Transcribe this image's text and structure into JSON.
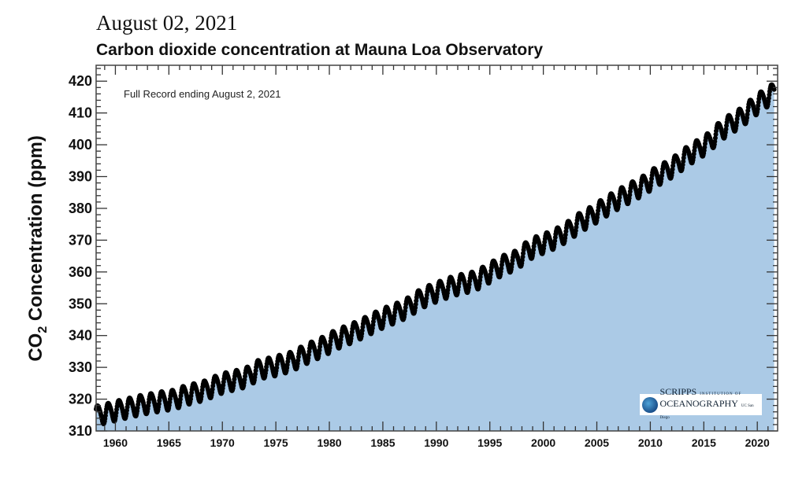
{
  "header": {
    "date": "August 02, 2021",
    "title": "Carbon dioxide concentration at Mauna Loa Observatory"
  },
  "logo": {
    "line1": "SCRIPPS",
    "line1_small": "INSTITUTION OF",
    "line2": "OCEANOGRAPHY",
    "line2_small": "UC San Diego"
  },
  "chart_data": {
    "type": "scatter",
    "title": "Carbon dioxide concentration at Mauna Loa Observatory",
    "annotation": "Full Record ending August 2, 2021",
    "ylabel_main": "CO",
    "ylabel_sub": "2",
    "ylabel_rest": " Concentration (ppm)",
    "xlabel": "",
    "xlim": [
      1958.2,
      2021.9
    ],
    "ylim": [
      310,
      425
    ],
    "x_ticks": [
      1960,
      1965,
      1970,
      1975,
      1980,
      1985,
      1990,
      1995,
      2000,
      2005,
      2010,
      2015,
      2020
    ],
    "y_ticks": [
      310,
      320,
      330,
      340,
      350,
      360,
      370,
      380,
      390,
      400,
      410,
      420
    ],
    "fill_color": "#abcae6",
    "marker_color": "#000000",
    "grid": false,
    "seasonal_amplitude_ppm": 6,
    "annual_mean": {
      "years": [
        1958,
        1959,
        1960,
        1961,
        1962,
        1963,
        1964,
        1965,
        1966,
        1967,
        1968,
        1969,
        1970,
        1971,
        1972,
        1973,
        1974,
        1975,
        1976,
        1977,
        1978,
        1979,
        1980,
        1981,
        1982,
        1983,
        1984,
        1985,
        1986,
        1987,
        1988,
        1989,
        1990,
        1991,
        1992,
        1993,
        1994,
        1995,
        1996,
        1997,
        1998,
        1999,
        2000,
        2001,
        2002,
        2003,
        2004,
        2005,
        2006,
        2007,
        2008,
        2009,
        2010,
        2011,
        2012,
        2013,
        2014,
        2015,
        2016,
        2017,
        2018,
        2019,
        2020,
        2021
      ],
      "ppm": [
        315.2,
        315.98,
        316.91,
        317.64,
        318.45,
        318.99,
        319.62,
        320.04,
        321.37,
        322.18,
        323.05,
        324.62,
        325.68,
        326.32,
        327.46,
        329.68,
        330.19,
        331.13,
        332.03,
        333.84,
        335.41,
        336.84,
        338.76,
        340.12,
        341.48,
        343.15,
        344.87,
        346.35,
        347.61,
        349.31,
        351.69,
        353.2,
        354.45,
        355.7,
        356.54,
        357.21,
        358.96,
        360.97,
        362.74,
        363.88,
        366.84,
        368.54,
        369.71,
        371.32,
        373.45,
        375.98,
        377.7,
        379.98,
        382.09,
        384.02,
        385.83,
        387.64,
        390.1,
        391.85,
        394.06,
        396.74,
        398.81,
        401.01,
        404.41,
        406.76,
        408.72,
        411.66,
        414.24,
        416.4
      ]
    },
    "record_start": 1958.2,
    "record_end": 2021.59
  }
}
